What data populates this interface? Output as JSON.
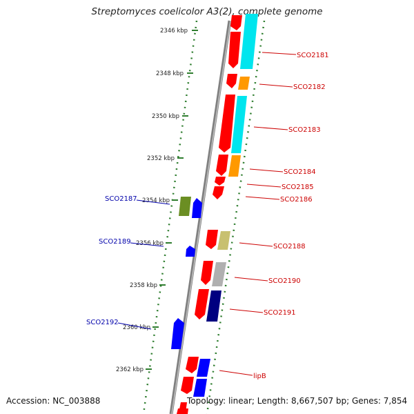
{
  "title": "Streptomyces coelicolor A3(2), complete genome",
  "footer": {
    "accession": "Accession: NC_003888",
    "summary": "Topology: linear; Length: 8,667,507 bp; Genes: 7,854"
  },
  "colors": {
    "background": "#ffffff",
    "backbone": "#808080",
    "tick": "#2e7d2e",
    "gene_label_forward": "#cc0000",
    "gene_label_reverse": "#0000aa"
  },
  "scale_labels": [
    "2346 kbp",
    "2348 kbp",
    "2350 kbp",
    "2352 kbp",
    "2354 kbp",
    "2356 kbp",
    "2358 kbp",
    "2360 kbp",
    "2362 kbp"
  ],
  "genes_forward": [
    {
      "name": "SCO2181",
      "color": "#00e5ee"
    },
    {
      "name": "SCO2182",
      "color": "#ff9900"
    },
    {
      "name": "SCO2183",
      "color": "#00e5ee"
    },
    {
      "name": "SCO2184",
      "color": "#ff9900"
    },
    {
      "name": "SCO2185",
      "color": "#ff0000"
    },
    {
      "name": "SCO2186",
      "color": "#ff0000"
    },
    {
      "name": "SCO2188",
      "color": "#c8c070"
    },
    {
      "name": "SCO2190",
      "color": "#b0b0b0"
    },
    {
      "name": "SCO2191",
      "color": "#000080"
    },
    {
      "name": "lipB",
      "color": "#0000ff"
    }
  ],
  "genes_reverse": [
    {
      "name": "SCO2187",
      "color": "#6b8e23"
    },
    {
      "name": "SCO2189",
      "color": "#0000ff"
    },
    {
      "name": "SCO2192",
      "color": "#0000ff"
    }
  ]
}
